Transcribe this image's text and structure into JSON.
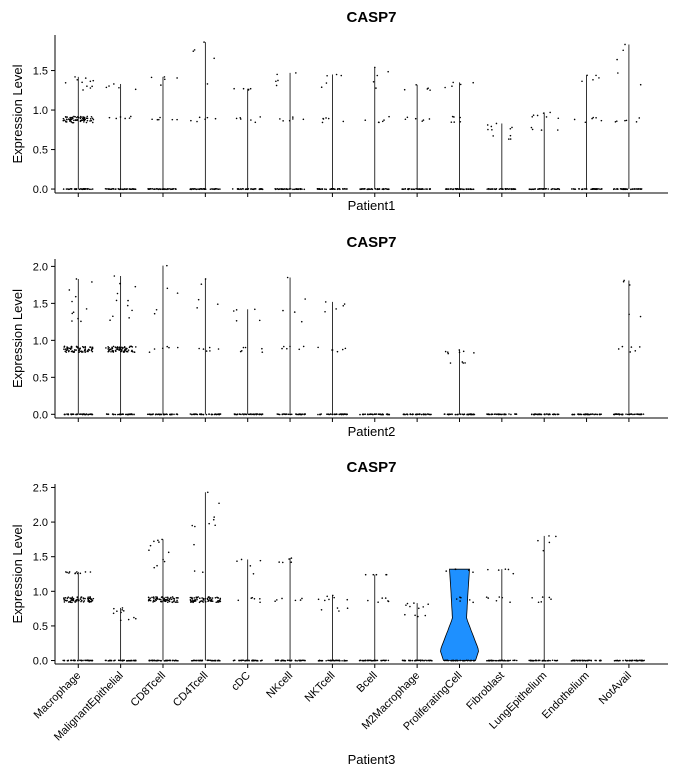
{
  "chart_data": [
    {
      "type": "violin",
      "title": "CASP7",
      "ylabel": "Expression Level",
      "xlabel": "Patient1",
      "categories": [
        "Macrophage",
        "MalignantEpithelial",
        "CD8Tcell",
        "CD4Tcell",
        "cDC",
        "NKcell",
        "NKTcell",
        "Bcell",
        "M2Macrophage",
        "ProliferatingCell",
        "Fibroblast",
        "LungEpithelium",
        "Endothelium",
        "NotAvail"
      ],
      "show_x_tick_labels": false,
      "ylim": [
        -0.05,
        1.95
      ],
      "yticks": [
        0.0,
        0.5,
        1.0,
        1.5
      ],
      "ytick_labels": [
        "0.0",
        "0.5",
        "1.0",
        "1.5"
      ],
      "max_expression": [
        1.42,
        1.33,
        1.42,
        1.86,
        1.27,
        1.47,
        1.45,
        1.54,
        1.32,
        1.35,
        0.83,
        0.97,
        1.44,
        1.83
      ],
      "violin_color": "#1E90FF"
    },
    {
      "type": "violin",
      "title": "CASP7",
      "ylabel": "Expression Level",
      "xlabel": "Patient2",
      "categories": [
        "Macrophage",
        "MalignantEpithelial",
        "CD8Tcell",
        "CD4Tcell",
        "cDC",
        "NKcell",
        "NKTcell",
        "Bcell",
        "M2Macrophage",
        "ProliferatingCell",
        "Fibroblast",
        "LungEpithelium",
        "Endothelium",
        "NotAvail"
      ],
      "show_x_tick_labels": false,
      "ylim": [
        -0.05,
        2.1
      ],
      "yticks": [
        0.0,
        0.5,
        1.0,
        1.5,
        2.0
      ],
      "ytick_labels": [
        "0.0",
        "0.5",
        "1.0",
        "1.5",
        "2.0"
      ],
      "max_expression": [
        1.83,
        1.87,
        2.01,
        1.83,
        1.42,
        1.85,
        1.52,
        0.0,
        0.0,
        0.87,
        0.0,
        0.0,
        0.0,
        1.81
      ],
      "violin_color": "#1E90FF"
    },
    {
      "type": "violin",
      "title": "CASP7",
      "ylabel": "Expression Level",
      "xlabel": "Patient3",
      "categories": [
        "Macrophage",
        "MalignantEpithelial",
        "CD8Tcell",
        "CD4Tcell",
        "cDC",
        "NKcell",
        "NKTcell",
        "Bcell",
        "M2Macrophage",
        "ProliferatingCell",
        "Fibroblast",
        "LungEpithelium",
        "Endothelium",
        "NotAvail"
      ],
      "show_x_tick_labels": true,
      "ylim": [
        -0.05,
        2.55
      ],
      "yticks": [
        0.0,
        0.5,
        1.0,
        1.5,
        2.0,
        2.5
      ],
      "ytick_labels": [
        "0.0",
        "0.5",
        "1.0",
        "1.5",
        "2.0",
        "2.5"
      ],
      "max_expression": [
        1.28,
        0.76,
        1.75,
        2.43,
        1.46,
        1.48,
        0.94,
        1.24,
        0.83,
        1.32,
        1.32,
        1.8,
        0.0,
        0.0
      ],
      "violin_color": "#1E90FF"
    }
  ]
}
